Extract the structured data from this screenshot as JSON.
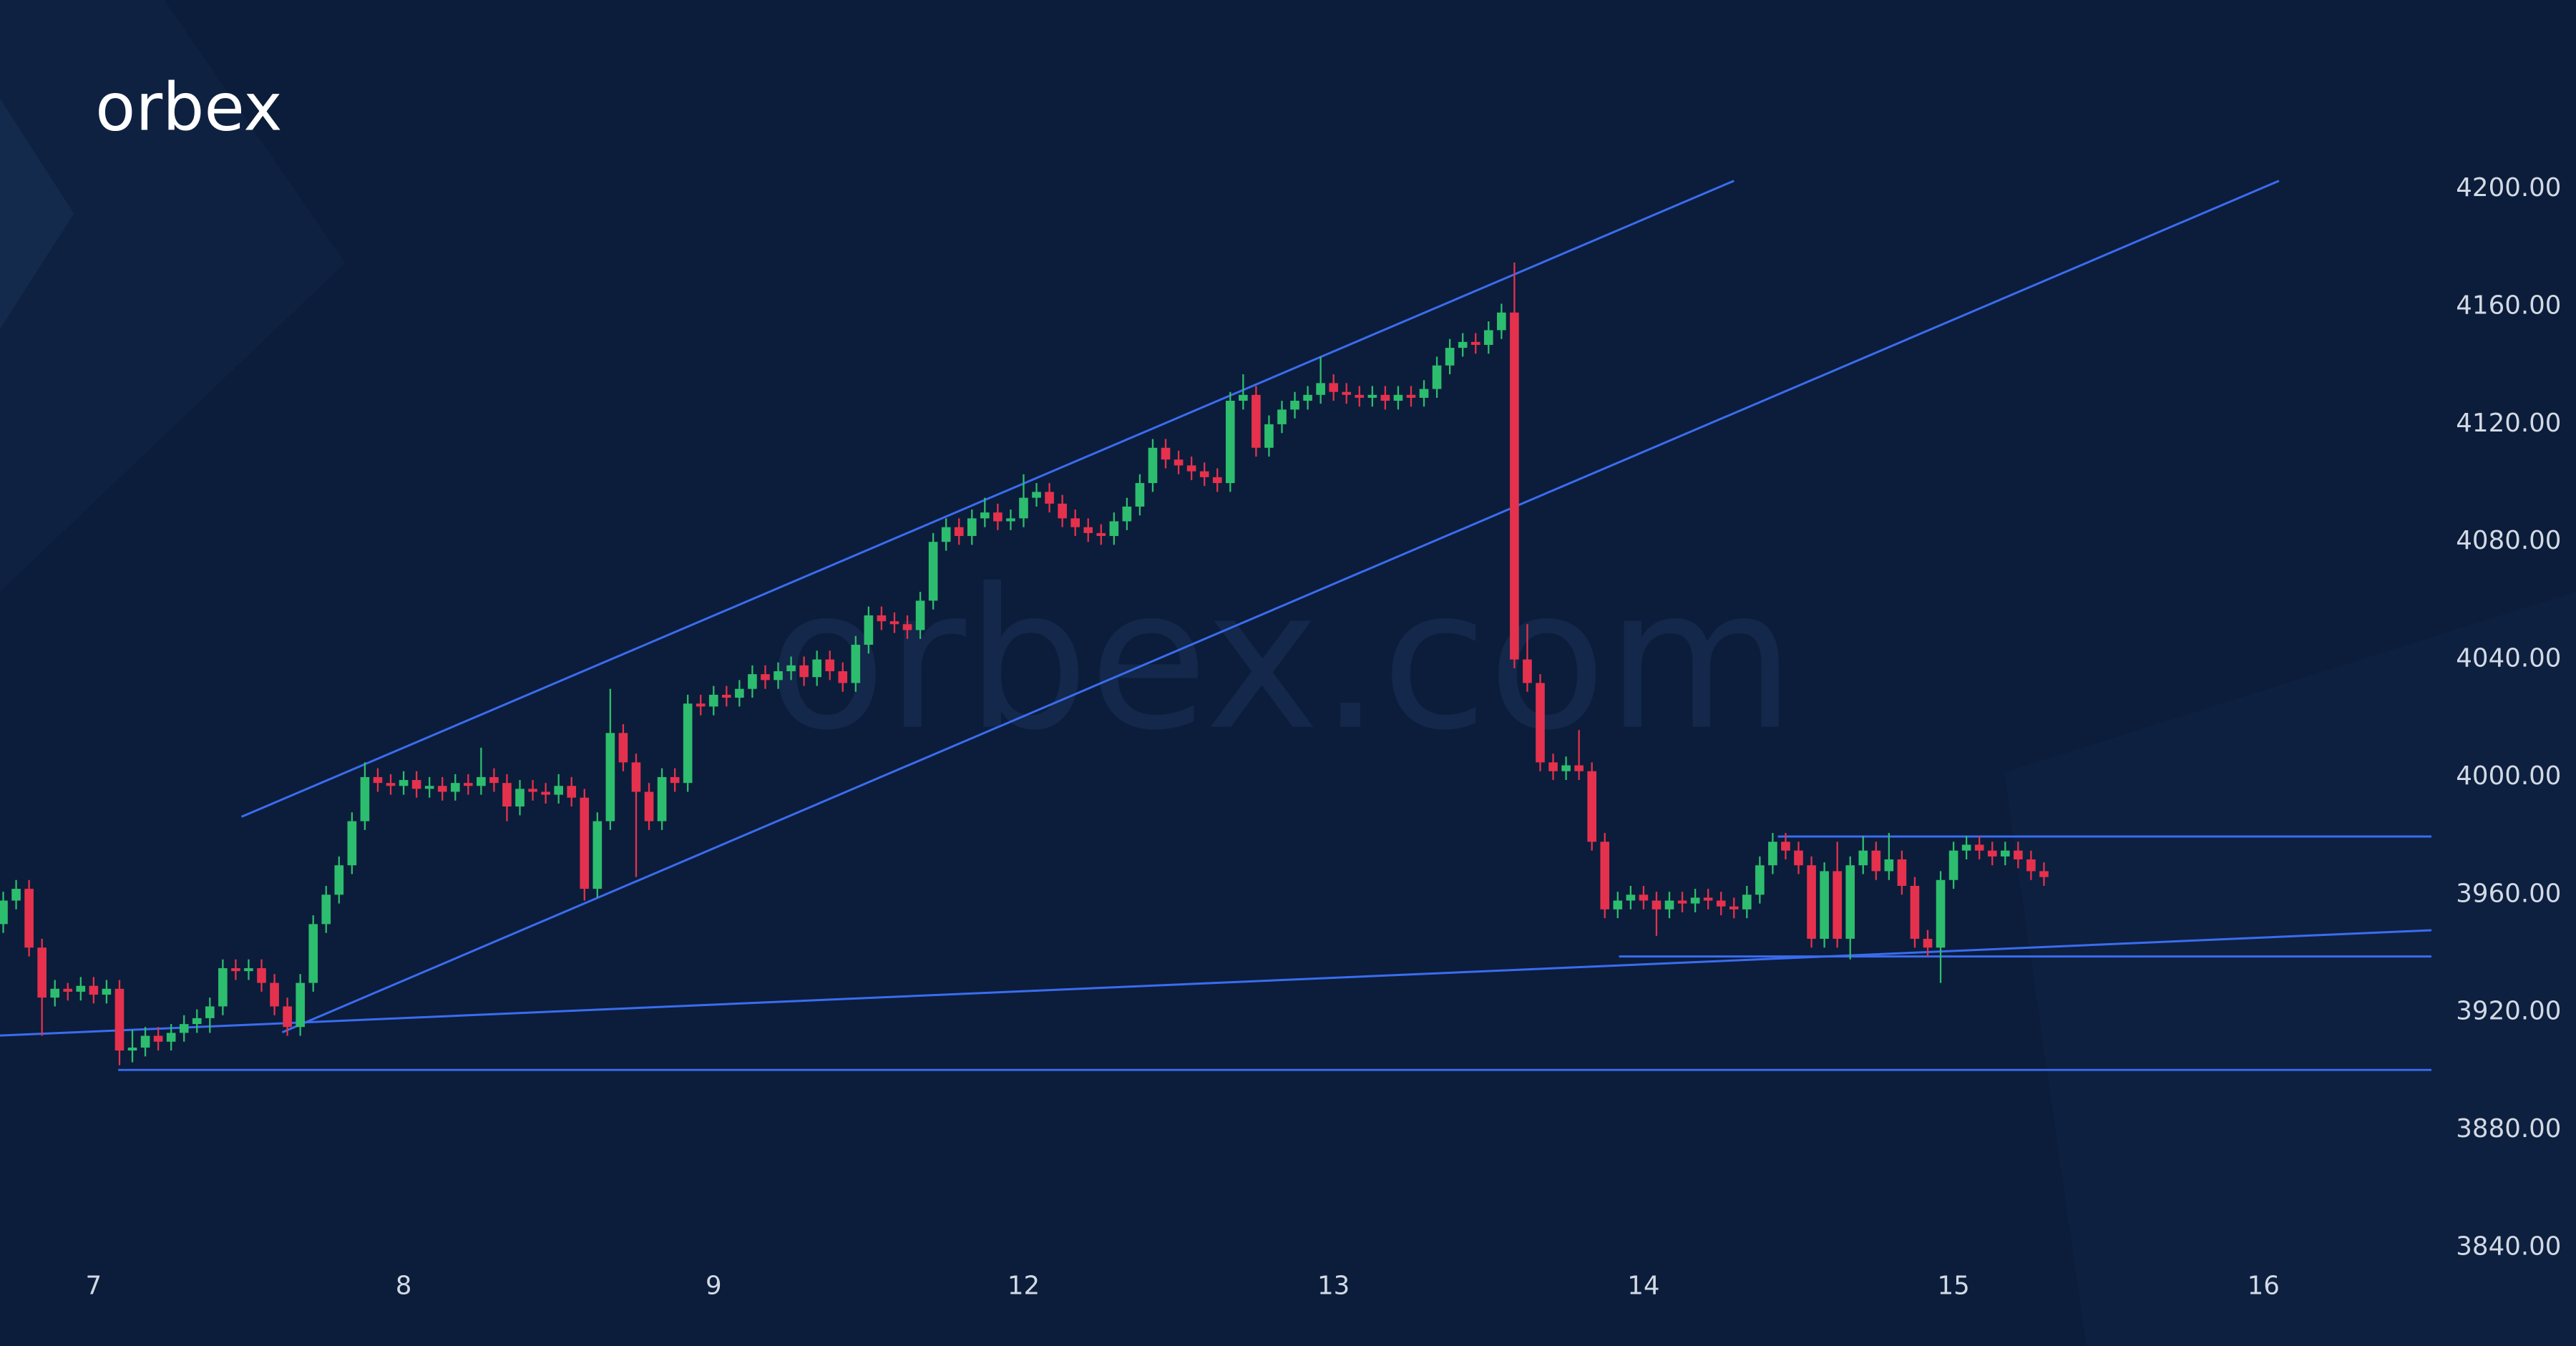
{
  "chart_data": {
    "type": "candlestick",
    "logo": "orbex",
    "watermark": "orbex.com",
    "up_color": "#2dbd6e",
    "down_color": "#e5314d",
    "line_color": "#3b6cf0",
    "open": [
      3950,
      3958,
      3962,
      3942,
      3925,
      3928,
      3927,
      3929,
      3926,
      3928,
      3907,
      3908,
      3912,
      3910,
      3913,
      3916,
      3918,
      3922,
      3935,
      3934,
      3935,
      3930,
      3922,
      3915,
      3930,
      3950,
      3960,
      3970,
      3985,
      4000,
      3998,
      3997,
      3999,
      3996,
      3997,
      3995,
      3998,
      3997,
      4000,
      3998,
      3990,
      3996,
      3995,
      3994,
      3997,
      3993,
      3962,
      3985,
      4015,
      4005,
      3995,
      3985,
      4000,
      3998,
      4025,
      4024,
      4028,
      4027,
      4030,
      4035,
      4033,
      4036,
      4038,
      4034,
      4040,
      4036,
      4032,
      4045,
      4055,
      4053,
      4052,
      4050,
      4060,
      4080,
      4085,
      4082,
      4088,
      4090,
      4087,
      4088,
      4095,
      4097,
      4093,
      4088,
      4085,
      4083,
      4082,
      4087,
      4092,
      4100,
      4112,
      4108,
      4106,
      4104,
      4102,
      4100,
      4128,
      4130,
      4112,
      4120,
      4125,
      4128,
      4130,
      4134,
      4131,
      4130,
      4129,
      4130,
      4128,
      4130,
      4129,
      4132,
      4140,
      4146,
      4148,
      4147,
      4152,
      4158,
      4040,
      4032,
      4005,
      4002,
      4004,
      4002,
      3978,
      3955,
      3958,
      3960,
      3958,
      3955,
      3958,
      3957,
      3959,
      3958,
      3956,
      3955,
      3960,
      3970,
      3978,
      3975,
      3970,
      3945,
      3968,
      3945,
      3970,
      3975,
      3968,
      3972,
      3963,
      3945,
      3942,
      3965,
      3975,
      3977,
      3975,
      3973,
      3975,
      3972,
      3968
    ],
    "high": [
      3961,
      3965,
      3965,
      3945,
      3931,
      3930,
      3932,
      3932,
      3931,
      3931,
      3914,
      3915,
      3915,
      3916,
      3919,
      3921,
      3925,
      3938,
      3938,
      3938,
      3938,
      3933,
      3925,
      3933,
      3953,
      3963,
      3973,
      3988,
      4005,
      4003,
      4001,
      4002,
      4002,
      4000,
      4000,
      4001,
      4001,
      4010,
      4003,
      4001,
      3999,
      3999,
      3998,
      4001,
      4000,
      3996,
      3988,
      4030,
      4018,
      4008,
      3998,
      4003,
      4003,
      4028,
      4028,
      4031,
      4031,
      4033,
      4038,
      4038,
      4039,
      4041,
      4041,
      4043,
      4043,
      4039,
      4048,
      4058,
      4058,
      4056,
      4055,
      4063,
      4083,
      4088,
      4088,
      4091,
      4095,
      4093,
      4091,
      4103,
      4100,
      4100,
      4096,
      4091,
      4088,
      4086,
      4090,
      4095,
      4103,
      4115,
      4115,
      4111,
      4109,
      4107,
      4105,
      4131,
      4137,
      4133,
      4123,
      4128,
      4131,
      4133,
      4143,
      4137,
      4134,
      4133,
      4133,
      4133,
      4133,
      4133,
      4135,
      4143,
      4149,
      4151,
      4151,
      4155,
      4161,
      4175,
      4052,
      4035,
      4008,
      4007,
      4016,
      4005,
      3981,
      3961,
      3963,
      3963,
      3961,
      3961,
      3961,
      3962,
      3962,
      3961,
      3959,
      3963,
      3973,
      3981,
      3981,
      3978,
      3973,
      3971,
      3978,
      3973,
      3980,
      3978,
      3981,
      3975,
      3966,
      3948,
      3968,
      3978,
      3980,
      3980,
      3978,
      3978,
      3978,
      3975,
      3971
    ],
    "low": [
      3947,
      3955,
      3939,
      3912,
      3922,
      3924,
      3924,
      3923,
      3923,
      3902,
      3903,
      3905,
      3907,
      3907,
      3910,
      3913,
      3913,
      3919,
      3931,
      3931,
      3927,
      3919,
      3912,
      3912,
      3927,
      3947,
      3957,
      3967,
      3982,
      3995,
      3994,
      3994,
      3993,
      3993,
      3992,
      3992,
      3994,
      3994,
      3995,
      3985,
      3987,
      3992,
      3991,
      3991,
      3990,
      3958,
      3959,
      3982,
      4002,
      3966,
      3982,
      3982,
      3995,
      3995,
      4021,
      4021,
      4024,
      4024,
      4027,
      4030,
      4030,
      4033,
      4031,
      4031,
      4033,
      4029,
      4029,
      4042,
      4050,
      4049,
      4047,
      4047,
      4057,
      4077,
      4079,
      4079,
      4085,
      4084,
      4084,
      4085,
      4092,
      4090,
      4085,
      4082,
      4080,
      4079,
      4079,
      4084,
      4089,
      4097,
      4105,
      4103,
      4101,
      4099,
      4097,
      4097,
      4125,
      4109,
      4109,
      4117,
      4122,
      4125,
      4127,
      4128,
      4127,
      4126,
      4126,
      4125,
      4125,
      4126,
      4126,
      4129,
      4137,
      4143,
      4144,
      4144,
      4149,
      4037,
      4029,
      4002,
      3999,
      3999,
      3999,
      3975,
      3952,
      3952,
      3955,
      3955,
      3946,
      3952,
      3954,
      3954,
      3955,
      3953,
      3952,
      3952,
      3957,
      3967,
      3972,
      3967,
      3942,
      3942,
      3942,
      3938,
      3967,
      3965,
      3965,
      3960,
      3942,
      3939,
      3930,
      3962,
      3972,
      3972,
      3970,
      3970,
      3969,
      3965,
      3963
    ],
    "close": [
      3958,
      3962,
      3942,
      3925,
      3928,
      3927,
      3929,
      3926,
      3928,
      3907,
      3908,
      3912,
      3910,
      3913,
      3916,
      3918,
      3922,
      3935,
      3934,
      3935,
      3930,
      3922,
      3915,
      3930,
      3950,
      3960,
      3970,
      3985,
      4000,
      3998,
      3997,
      3999,
      3996,
      3997,
      3995,
      3998,
      3997,
      4000,
      3998,
      3990,
      3996,
      3995,
      3994,
      3997,
      3993,
      3962,
      3985,
      4015,
      4005,
      3995,
      3985,
      4000,
      3998,
      4025,
      4024,
      4028,
      4027,
      4030,
      4035,
      4033,
      4036,
      4038,
      4034,
      4040,
      4036,
      4032,
      4045,
      4055,
      4053,
      4052,
      4050,
      4060,
      4080,
      4085,
      4082,
      4088,
      4090,
      4087,
      4088,
      4095,
      4097,
      4093,
      4088,
      4085,
      4083,
      4082,
      4087,
      4092,
      4100,
      4112,
      4108,
      4106,
      4104,
      4102,
      4100,
      4128,
      4130,
      4112,
      4120,
      4125,
      4128,
      4130,
      4134,
      4131,
      4130,
      4129,
      4130,
      4128,
      4130,
      4129,
      4132,
      4140,
      4146,
      4148,
      4147,
      4152,
      4158,
      4040,
      4032,
      4005,
      4002,
      4004,
      4002,
      3978,
      3955,
      3958,
      3960,
      3958,
      3955,
      3958,
      3957,
      3959,
      3958,
      3956,
      3955,
      3960,
      3970,
      3978,
      3975,
      3970,
      3945,
      3968,
      3945,
      3970,
      3975,
      3968,
      3972,
      3963,
      3945,
      3942,
      3965,
      3975,
      3977,
      3975,
      3973,
      3975,
      3972,
      3968,
      3966
    ],
    "lines": [
      {
        "x": [
          18.45,
          134
        ],
        "y": [
          3986.5,
          4202.8
        ]
      },
      {
        "x": [
          21.6,
          176.2
        ],
        "y": [
          3913.2,
          4202.8
        ]
      },
      {
        "x": [
          -0.25,
          188
        ],
        "y": [
          3912.1,
          3947.9
        ]
      },
      {
        "x": [
          8.9,
          188
        ],
        "y": [
          3900.4,
          3900.4
        ]
      },
      {
        "x": [
          137.4,
          188
        ],
        "y": [
          3979.8,
          3979.8
        ]
      },
      {
        "x": [
          125.1,
          188
        ],
        "y": [
          3939,
          3939
        ]
      }
    ],
    "xlim": [
      -0.25,
      188
    ],
    "xticks": [
      {
        "value": 7,
        "label": "7"
      },
      {
        "value": 31,
        "label": "8"
      },
      {
        "value": 55,
        "label": "9"
      },
      {
        "value": 79,
        "label": "12"
      },
      {
        "value": 103,
        "label": "13"
      },
      {
        "value": 127,
        "label": "14"
      },
      {
        "value": 151,
        "label": "15"
      },
      {
        "value": 175,
        "label": "16"
      }
    ],
    "ylim": [
      3806.5,
      4264.3
    ],
    "yticks": [
      {
        "value": 3840,
        "label": "3840.00"
      },
      {
        "value": 3880,
        "label": "3880.00"
      },
      {
        "value": 3920,
        "label": "3920.00"
      },
      {
        "value": 3960,
        "label": "3960.00"
      },
      {
        "value": 4000,
        "label": "4000.00"
      },
      {
        "value": 4040,
        "label": "4040.00"
      },
      {
        "value": 4080,
        "label": "4080.00"
      },
      {
        "value": 4120,
        "label": "4120.00"
      },
      {
        "value": 4160,
        "label": "4160.00"
      },
      {
        "value": 4200,
        "label": "4200.00"
      }
    ]
  }
}
